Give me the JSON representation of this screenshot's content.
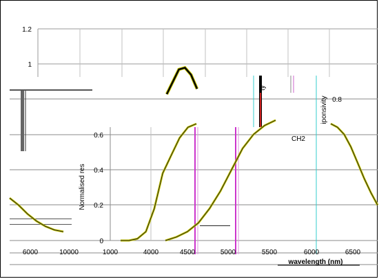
{
  "chart_data": [
    {
      "type": "line",
      "title": "",
      "xlabel": "",
      "ylabel": "",
      "ylim": [
        0.6,
        1.2
      ],
      "y_ticks": [
        "1.2",
        "1",
        "0.8",
        "0.6"
      ],
      "grid": true,
      "series": [
        {
          "values": [
            0.83,
            0.9,
            0.97,
            0.98,
            0.94,
            0.86
          ]
        }
      ]
    },
    {
      "type": "line",
      "title": "",
      "xlabel": "wavelength (nm)",
      "ylabel": "Normalised res",
      "ylim": [
        0,
        0.8
      ],
      "y_ticks": [
        "0",
        "0.2",
        "0.4",
        "0.6"
      ],
      "x_ticks": [
        "6000",
        "10000",
        "1000",
        "4000",
        "4500",
        "5000",
        "5500",
        "6000",
        "6500"
      ],
      "grid": true,
      "annotations": [
        "CH2",
        "0.8",
        "ty",
        "iponsivity"
      ],
      "series": [
        {
          "values": [
            0.0,
            0.0,
            0.01,
            0.05,
            0.18,
            0.38,
            0.48,
            0.58,
            0.64,
            0.66
          ]
        },
        {
          "values": [
            0.0,
            0.02,
            0.05,
            0.1,
            0.18,
            0.28,
            0.4,
            0.52,
            0.6,
            0.65,
            0.68
          ]
        },
        {
          "values": [
            0.66,
            0.64,
            0.6,
            0.53,
            0.44,
            0.35,
            0.27,
            0.2
          ]
        },
        {
          "values": [
            0.24,
            0.2,
            0.15,
            0.11,
            0.08,
            0.06,
            0.05
          ]
        }
      ]
    }
  ]
}
